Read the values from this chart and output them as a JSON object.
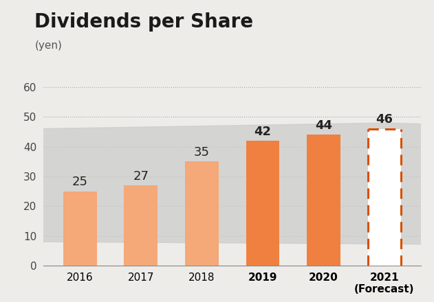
{
  "title": "Dividends per Share",
  "subtitle": "(yen)",
  "years": [
    "2016",
    "2017",
    "2018",
    "2019",
    "2020",
    "2021\n(Forecast)"
  ],
  "values": [
    25,
    27,
    35,
    42,
    44,
    46
  ],
  "forecast_edge_color": "#D94F00",
  "light_bar_color": "#F5A878",
  "dark_bar_color": "#EF8040",
  "ylim": [
    0,
    70
  ],
  "yticks": [
    0,
    10,
    20,
    30,
    40,
    50,
    60
  ],
  "background_color": "#EEECE9",
  "title_fontsize": 20,
  "subtitle_fontsize": 11,
  "tick_fontsize": 11,
  "value_fontsize": 13,
  "bold_years": [
    "2019",
    "2020"
  ]
}
